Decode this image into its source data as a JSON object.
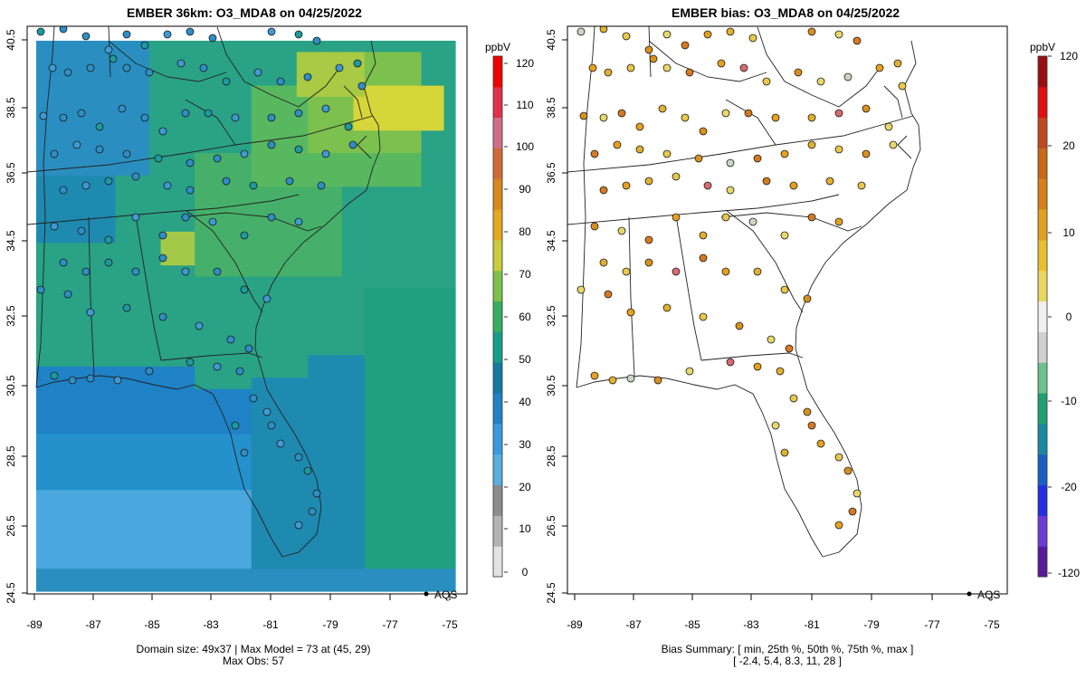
{
  "left_panel": {
    "title": "EMBER 36km: O3_MDA8 on 04/25/2022",
    "footer_line1": "Domain size: 49x37 | Max Model = 73 at (45, 29)",
    "footer_line2": "Max Obs: 57",
    "colorbar": {
      "unit": "ppbV",
      "labels": [
        "120",
        "110",
        "100",
        "90",
        "80",
        "70",
        "60",
        "50",
        "40",
        "30",
        "20",
        "10",
        "0"
      ],
      "min": 0,
      "max": 120,
      "colors": [
        "#e2e2e2",
        "#b4b4b4",
        "#8c8c8c",
        "#5aaee0",
        "#3a9ae0",
        "#1f82c6",
        "#157aa2",
        "#169d86",
        "#36ad60",
        "#7dc04a",
        "#c8cc3c",
        "#e2a820",
        "#d9881e",
        "#d06a38",
        "#d06e88",
        "#e0304a",
        "#f00000"
      ]
    },
    "legend": "AQS"
  },
  "right_panel": {
    "title": "EMBER bias: O3_MDA8 on 04/25/2022",
    "footer_line1": "Bias Summary: [ min, 25th %, 50th %, 75th %, max ]",
    "footer_line2": "[ -2.4,   5.4,   8.3,   11,   28 ]",
    "colorbar": {
      "unit": "ppbV",
      "labels": [
        "120",
        "20",
        "10",
        "0",
        "-10",
        "-20",
        "-120"
      ],
      "colors": [
        "#5a1a9a",
        "#6a3ad6",
        "#2030e0",
        "#1a60c0",
        "#1a8aa0",
        "#1ea070",
        "#6ec08a",
        "#d0d0d0",
        "#f0f0f0",
        "#e8d860",
        "#e8c030",
        "#e0a020",
        "#d88018",
        "#c86818",
        "#c04820",
        "#e01010",
        "#9a1010"
      ]
    },
    "legend": "AQS",
    "bias_summary": {
      "min": -2.4,
      "p25": 5.4,
      "p50": 8.3,
      "p75": 11,
      "max": 28
    }
  },
  "x_axis_labels": [
    "-89",
    "-87",
    "-85",
    "-83",
    "-81",
    "-79",
    "-77",
    "-75"
  ],
  "y_axis_labels": [
    "24.5",
    "26.5",
    "28.5",
    "30.5",
    "32.5",
    "34.5",
    "36.5",
    "38.5",
    "40.5"
  ],
  "map_extent": {
    "lon_min": -89.2,
    "lon_max": -74.8,
    "lat_min": 24.5,
    "lat_max": 40.7
  },
  "colors": {
    "ocean_model": "#1f82c6",
    "land_model": "#2aa286",
    "hotspot": "#d8d83a",
    "station_outline": "#1b1b1b"
  }
}
